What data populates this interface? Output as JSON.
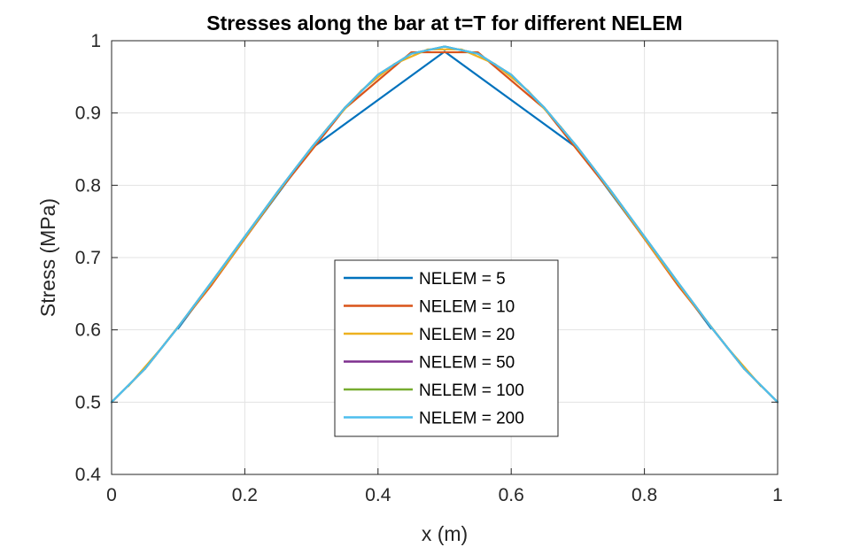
{
  "chart_data": {
    "type": "line",
    "title": "Stresses along the bar at t=T for different NELEM",
    "xlabel": "x (m)",
    "ylabel": "Stress (MPa)",
    "xlim": [
      0,
      1
    ],
    "ylim": [
      0.4,
      1
    ],
    "xticks": [
      "0",
      "0.2",
      "0.4",
      "0.6",
      "0.8",
      "1"
    ],
    "yticks": [
      "0.4",
      "0.5",
      "0.6",
      "0.7",
      "0.8",
      "0.9",
      "1"
    ],
    "grid": true,
    "legend_position": "center-bottom",
    "series": [
      {
        "name": "NELEM = 5",
        "color": "#0072BD",
        "x": [
          0.1,
          0.3,
          0.5,
          0.7,
          0.9
        ],
        "y": [
          0.602,
          0.851,
          0.985,
          0.851,
          0.602
        ]
      },
      {
        "name": "NELEM = 10",
        "color": "#D95319",
        "x": [
          0.05,
          0.15,
          0.25,
          0.35,
          0.45,
          0.55,
          0.65,
          0.75,
          0.85,
          0.95
        ],
        "y": [
          0.546,
          0.662,
          0.79,
          0.906,
          0.984,
          0.984,
          0.906,
          0.79,
          0.662,
          0.546
        ]
      },
      {
        "name": "NELEM = 20",
        "color": "#EDB120",
        "x": [
          0.025,
          0.075,
          0.125,
          0.175,
          0.225,
          0.275,
          0.325,
          0.375,
          0.425,
          0.475,
          0.525,
          0.575,
          0.625,
          0.675,
          0.725,
          0.775,
          0.825,
          0.875,
          0.925,
          0.975
        ],
        "y": [
          0.522,
          0.575,
          0.634,
          0.695,
          0.759,
          0.822,
          0.88,
          0.931,
          0.968,
          0.988,
          0.988,
          0.968,
          0.931,
          0.88,
          0.822,
          0.759,
          0.695,
          0.634,
          0.575,
          0.522
        ]
      },
      {
        "name": "NELEM = 50",
        "color": "#7E2F8E",
        "x": [
          0.0,
          0.05,
          0.1,
          0.15,
          0.2,
          0.25,
          0.3,
          0.35,
          0.4,
          0.45,
          0.5,
          0.55,
          0.6,
          0.65,
          0.7,
          0.75,
          0.8,
          0.85,
          0.9,
          0.95,
          1.0
        ],
        "y": [
          0.5,
          0.546,
          0.604,
          0.666,
          0.729,
          0.792,
          0.852,
          0.907,
          0.953,
          0.982,
          0.992,
          0.982,
          0.953,
          0.907,
          0.852,
          0.792,
          0.729,
          0.666,
          0.604,
          0.546,
          0.5
        ]
      },
      {
        "name": "NELEM = 100",
        "color": "#77AC30",
        "x": [
          0.0,
          0.05,
          0.1,
          0.15,
          0.2,
          0.25,
          0.3,
          0.35,
          0.4,
          0.45,
          0.5,
          0.55,
          0.6,
          0.65,
          0.7,
          0.75,
          0.8,
          0.85,
          0.9,
          0.95,
          1.0
        ],
        "y": [
          0.5,
          0.546,
          0.604,
          0.666,
          0.729,
          0.792,
          0.852,
          0.907,
          0.953,
          0.982,
          0.992,
          0.982,
          0.953,
          0.907,
          0.852,
          0.792,
          0.729,
          0.666,
          0.604,
          0.546,
          0.5
        ]
      },
      {
        "name": "NELEM = 200",
        "color": "#4DBEEE",
        "x": [
          0.0,
          0.05,
          0.1,
          0.15,
          0.2,
          0.25,
          0.3,
          0.35,
          0.4,
          0.45,
          0.5,
          0.55,
          0.6,
          0.65,
          0.7,
          0.75,
          0.8,
          0.85,
          0.9,
          0.95,
          1.0
        ],
        "y": [
          0.5,
          0.546,
          0.604,
          0.666,
          0.729,
          0.792,
          0.852,
          0.907,
          0.953,
          0.982,
          0.992,
          0.982,
          0.953,
          0.907,
          0.852,
          0.792,
          0.729,
          0.666,
          0.604,
          0.546,
          0.5
        ]
      }
    ]
  }
}
